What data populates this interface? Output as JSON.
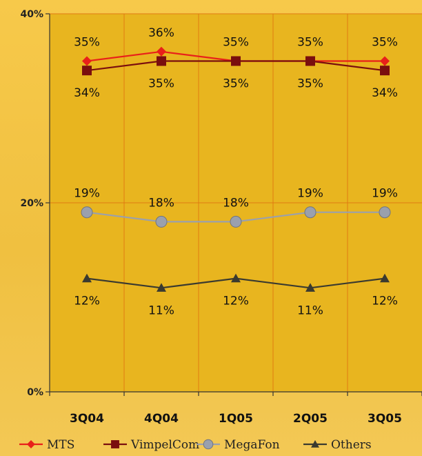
{
  "chart_data": {
    "type": "line",
    "categories": [
      "3Q04",
      "4Q04",
      "1Q05",
      "2Q05",
      "3Q05"
    ],
    "ylim": [
      0,
      40
    ],
    "yticks": [
      0,
      20,
      40
    ],
    "ytick_labels": [
      "0%",
      "20%",
      "40%"
    ],
    "grid": true,
    "legend_position": "bottom",
    "series": [
      {
        "name": "MTS",
        "values": [
          35,
          36,
          35,
          35,
          35
        ],
        "labels": [
          "35%",
          "36%",
          "35%",
          "35%",
          "35%"
        ],
        "color": "#e8201a",
        "marker": "diamond",
        "label_position": "above"
      },
      {
        "name": "VimpelCom",
        "values": [
          34,
          35,
          35,
          35,
          34
        ],
        "labels": [
          "34%",
          "35%",
          "35%",
          "35%",
          "34%"
        ],
        "color": "#7a0e0e",
        "marker": "square",
        "label_position": "below"
      },
      {
        "name": "MegaFon",
        "values": [
          19,
          18,
          18,
          19,
          19
        ],
        "labels": [
          "19%",
          "18%",
          "18%",
          "19%",
          "19%"
        ],
        "color": "#9aa0ad",
        "marker": "circle",
        "label_position": "above"
      },
      {
        "name": "Others",
        "values": [
          12,
          11,
          12,
          11,
          12
        ],
        "labels": [
          "12%",
          "11%",
          "12%",
          "11%",
          "12%"
        ],
        "color": "#3a3a30",
        "marker": "triangle",
        "label_position": "below"
      }
    ]
  }
}
